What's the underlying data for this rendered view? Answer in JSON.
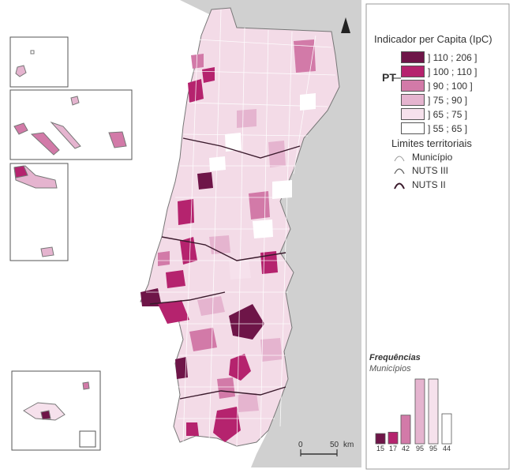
{
  "legend": {
    "title": "Indicador per Capita (IpC)",
    "country_label": "PT",
    "classes": [
      {
        "label": "] 110 ; 206 ]",
        "color": "#6e1548"
      },
      {
        "label": "] 100 ; 110 ]",
        "color": "#b5236e"
      },
      {
        "label": "] 90 ; 100 ]",
        "color": "#d27aa8"
      },
      {
        "label": "] 75 ; 90 ]",
        "color": "#e5b4cf"
      },
      {
        "label": "] 65 ; 75 ]",
        "color": "#f6e1ec"
      },
      {
        "label": "] 55 ; 65 ]",
        "color": "#ffffff"
      }
    ]
  },
  "limits": {
    "title": "Limites territoriais",
    "items": [
      {
        "label": "Município"
      },
      {
        "label": "NUTS III"
      },
      {
        "label": "NUTS II"
      }
    ]
  },
  "frequencies": {
    "title": "Frequências",
    "subtitle": "Municípios",
    "counts": [
      15,
      17,
      42,
      95,
      95,
      44
    ]
  },
  "scale": {
    "start": "0",
    "end": "50",
    "unit": "km"
  },
  "colors": {
    "sea": "#ffffff",
    "spain": "#d0d0d0",
    "border": "#888888",
    "nuts2": "#3a1a2c"
  }
}
